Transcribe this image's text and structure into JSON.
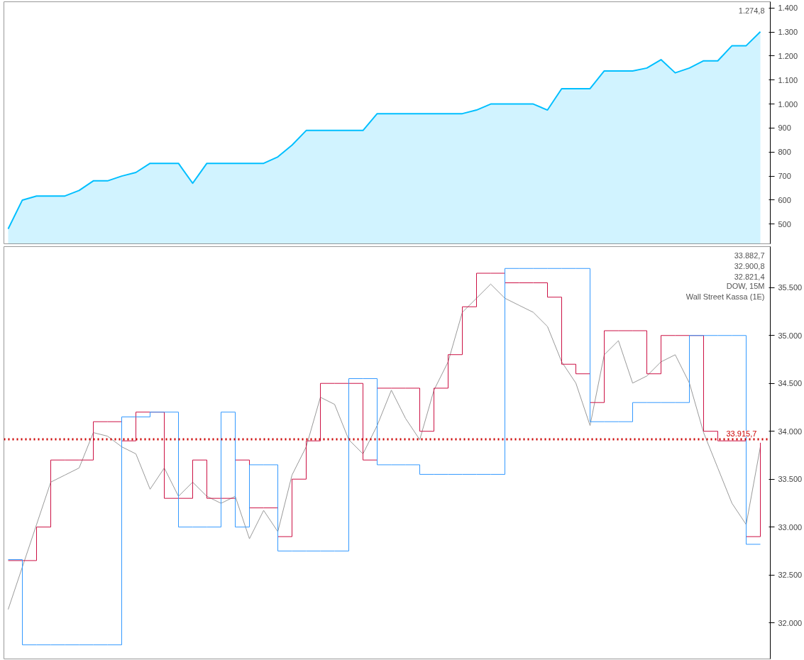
{
  "chart_data": [
    {
      "type": "area",
      "categories": [
        null,
        null,
        null,
        null,
        null,
        null,
        null,
        null,
        null,
        null,
        null,
        null,
        null,
        null,
        null,
        null,
        null,
        null,
        null,
        null,
        null,
        null,
        null,
        null,
        null,
        null,
        null,
        null,
        null,
        null,
        null,
        null,
        null,
        null,
        null,
        null,
        null,
        null,
        null,
        null,
        null,
        null,
        null,
        null,
        null,
        null,
        null,
        null,
        null,
        null,
        null,
        null,
        null,
        null
      ],
      "series": [
        {
          "color": "#00bfff",
          "values": [
            480,
            600,
            617,
            617,
            617,
            640,
            680,
            680,
            700,
            715,
            753,
            753,
            753,
            670,
            753,
            753,
            753,
            753,
            753,
            780,
            829,
            890,
            890,
            890,
            890,
            890,
            960,
            960,
            960,
            960,
            960,
            960,
            960,
            975,
            1000,
            1000,
            1000,
            1000,
            975,
            1064,
            1064,
            1064,
            1138,
            1138,
            1138,
            1150,
            1185,
            1130,
            1150,
            1180,
            1180,
            1243,
            1243,
            1301
          ]
        }
      ],
      "ylim": [
        418,
        1426
      ],
      "yticks": [
        {
          "value": 500,
          "label": "500"
        },
        {
          "value": 600,
          "label": "600"
        },
        {
          "value": 700,
          "label": "700"
        },
        {
          "value": 800,
          "label": "800"
        },
        {
          "value": 900,
          "label": "900"
        },
        {
          "value": 1000,
          "label": "1.000"
        },
        {
          "value": 1100,
          "label": "1.100"
        },
        {
          "value": 1200,
          "label": "1.200"
        },
        {
          "value": 1300,
          "label": "1.300"
        },
        {
          "value": 1400,
          "label": "1.400"
        }
      ],
      "tick_labels": "y",
      "annotations": [
        "1.274,8"
      ]
    },
    {
      "type": "line",
      "categories": [
        null,
        null,
        null,
        null,
        null,
        null,
        null,
        null,
        null,
        null,
        null,
        null,
        null,
        null,
        null,
        null,
        null,
        null,
        null,
        null,
        null,
        null,
        null,
        null,
        null,
        null,
        null,
        null,
        null,
        null,
        null,
        null,
        null,
        null,
        null,
        null,
        null,
        null,
        null,
        null,
        null,
        null,
        null,
        null,
        null,
        null,
        null,
        null,
        null,
        null,
        null,
        null,
        null,
        null
      ],
      "series": [
        {
          "type": "line",
          "color": "#999999",
          "values": [
            32140,
            32583,
            33026,
            33469,
            33543,
            33617,
            33986,
            33949,
            33838,
            33764,
            33395,
            33617,
            33321,
            33469,
            33321,
            33248,
            33321,
            32878,
            33174,
            32952,
            33543,
            33838,
            34355,
            34281,
            33912,
            33764,
            34060,
            34429,
            34134,
            33912,
            34429,
            34725,
            35242,
            35389,
            35537,
            35389,
            35315,
            35242,
            35094,
            34725,
            34503,
            34060,
            34799,
            34946,
            34503,
            34577,
            34725,
            34799,
            34503,
            33986,
            33617,
            33248,
            33026,
            33838
          ]
        },
        {
          "type": "step",
          "color": "#cc1144",
          "values": [
            32650,
            32650,
            33000,
            33700,
            33700,
            33700,
            34100,
            34100,
            33900,
            34200,
            34200,
            33300,
            33300,
            33700,
            33300,
            33300,
            33700,
            33200,
            33200,
            32900,
            33500,
            33900,
            34500,
            34500,
            34500,
            33700,
            34450,
            34450,
            34450,
            34000,
            34450,
            34800,
            35300,
            35650,
            35650,
            35550,
            35550,
            35550,
            35400,
            34700,
            34600,
            34300,
            35050,
            35050,
            35050,
            34600,
            35000,
            35000,
            35000,
            34000,
            33900,
            33900,
            32900,
            33880
          ]
        },
        {
          "type": "step",
          "color": "#3399ff",
          "values": [
            32660,
            31770,
            31770,
            31770,
            31770,
            31770,
            31770,
            31770,
            34150,
            34150,
            34200,
            34200,
            33000,
            33000,
            33000,
            34200,
            33000,
            33650,
            33650,
            32750,
            32750,
            32750,
            32750,
            32750,
            34550,
            34550,
            33650,
            33650,
            33650,
            33550,
            33550,
            33550,
            33550,
            33550,
            33550,
            35700,
            35700,
            35700,
            35700,
            35700,
            35700,
            34100,
            34100,
            34100,
            34300,
            34300,
            34300,
            34300,
            35000,
            35000,
            35000,
            35000,
            32820,
            32820
          ]
        }
      ],
      "ylim": [
        31623,
        35928
      ],
      "yticks": [
        {
          "value": 32000,
          "label": "32.000"
        },
        {
          "value": 32500,
          "label": "32.500"
        },
        {
          "value": 33000,
          "label": "33.000"
        },
        {
          "value": 33500,
          "label": "33.500"
        },
        {
          "value": 34000,
          "label": "34.000"
        },
        {
          "value": 34500,
          "label": "34.500"
        },
        {
          "value": 35000,
          "label": "35.000"
        },
        {
          "value": 35500,
          "label": "35.500"
        }
      ],
      "tick_labels": "y",
      "ref_lines": [
        {
          "axis": "y",
          "value": 33915.7,
          "label": "33.915,7",
          "color": "#cc0000",
          "line_style": "dotted"
        }
      ],
      "annotations": [
        "33.882,7",
        "32.900,8",
        "32.821,4",
        "DOW, 15M",
        "Wall Street Kassa (1E)"
      ]
    }
  ]
}
